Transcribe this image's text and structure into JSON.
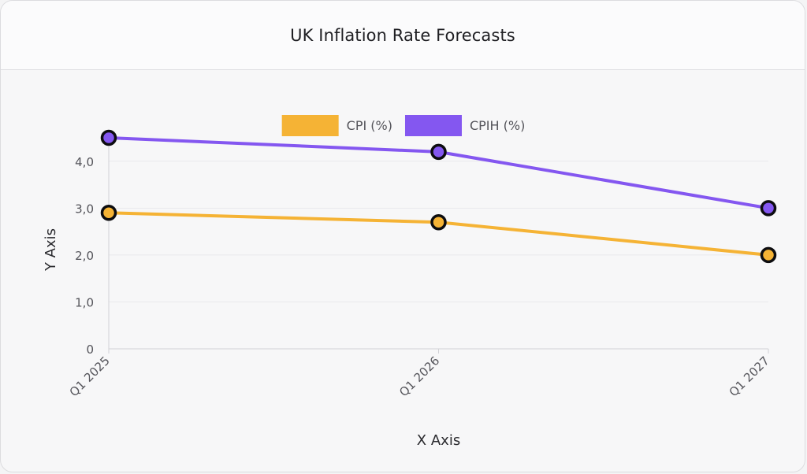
{
  "header": {
    "title": "UK Inflation Rate Forecasts"
  },
  "chart_data": {
    "type": "line",
    "title": "UK Inflation Rate Forecasts",
    "xlabel": "X Axis",
    "ylabel": "Y Axis",
    "categories": [
      "Q1 2025",
      "Q1 2026",
      "Q1 2027"
    ],
    "y_ticks": [
      {
        "value": 0,
        "label": "0"
      },
      {
        "value": 1,
        "label": "1,0"
      },
      {
        "value": 2,
        "label": "2,0"
      },
      {
        "value": 3,
        "label": "3,0"
      },
      {
        "value": 4,
        "label": "4,0"
      }
    ],
    "ylim": [
      0,
      4.5
    ],
    "grid": true,
    "legend_position": "top",
    "series": [
      {
        "name": "CPI (%)",
        "color": "#f5b335",
        "values": [
          2.9,
          2.7,
          2.0
        ]
      },
      {
        "name": "CPIH (%)",
        "color": "#8457f0",
        "values": [
          4.5,
          4.2,
          3.0
        ]
      }
    ]
  }
}
